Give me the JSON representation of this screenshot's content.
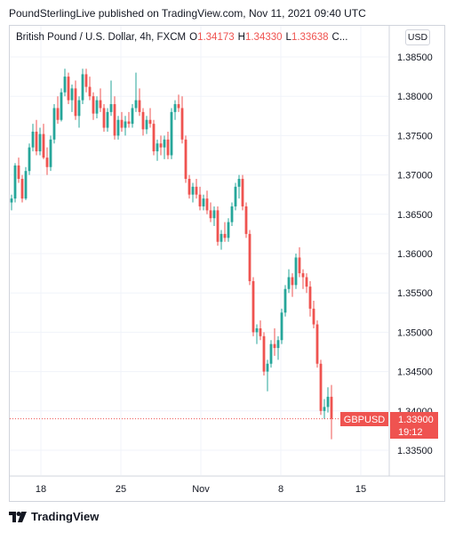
{
  "header": {
    "publisher_line": "PoundSterlingLive published on TradingView.com, Nov 11, 2021 09:40 UTC"
  },
  "legend": {
    "symbol": "British Pound / U.S. Dollar, 4h, FXCM",
    "o_key": "O",
    "o_val": "1.34173",
    "h_key": "H",
    "h_val": "1.34330",
    "l_key": "L",
    "l_val": "1.33638",
    "c_key": "C..."
  },
  "currency_button": "USD",
  "price_tag": {
    "symbol": "GBPUSD",
    "price": "1.33900",
    "countdown": "19:12"
  },
  "footer": {
    "brand": "TradingView"
  },
  "colors": {
    "up": "#26a69a",
    "down": "#ef5350",
    "grid": "#f0f3fa",
    "axis_text": "#131722"
  },
  "chart_data": {
    "type": "candlestick",
    "y_tick_labels": [
      "1.38500",
      "1.38000",
      "1.37500",
      "1.37000",
      "1.36500",
      "1.36000",
      "1.35500",
      "1.35000",
      "1.34500",
      "1.34000",
      "1.33500"
    ],
    "y_ticks": [
      1.385,
      1.38,
      1.375,
      1.37,
      1.365,
      1.36,
      1.355,
      1.35,
      1.345,
      1.34,
      1.335
    ],
    "x_tick_labels": [
      "18",
      "25",
      "Nov",
      "8",
      "15"
    ],
    "ylim": [
      1.3325,
      1.388
    ],
    "last_price": 1.339,
    "candles": [
      [
        1.3665,
        1.3675,
        1.3655,
        1.367
      ],
      [
        1.367,
        1.3715,
        1.3665,
        1.3712
      ],
      [
        1.3712,
        1.3722,
        1.369,
        1.3695
      ],
      [
        1.3695,
        1.37,
        1.3665,
        1.367
      ],
      [
        1.367,
        1.371,
        1.3668,
        1.3705
      ],
      [
        1.3705,
        1.374,
        1.37,
        1.3735
      ],
      [
        1.3735,
        1.3765,
        1.373,
        1.3755
      ],
      [
        1.3755,
        1.377,
        1.3725,
        1.373
      ],
      [
        1.373,
        1.376,
        1.3725,
        1.3752
      ],
      [
        1.3752,
        1.3765,
        1.372,
        1.3722
      ],
      [
        1.3722,
        1.3735,
        1.37,
        1.371
      ],
      [
        1.371,
        1.375,
        1.3705,
        1.3745
      ],
      [
        1.3745,
        1.379,
        1.374,
        1.3785
      ],
      [
        1.3785,
        1.38,
        1.3765,
        1.377
      ],
      [
        1.377,
        1.381,
        1.3768,
        1.3805
      ],
      [
        1.3805,
        1.3835,
        1.38,
        1.3825
      ],
      [
        1.3825,
        1.383,
        1.379,
        1.3795
      ],
      [
        1.3795,
        1.3815,
        1.378,
        1.381
      ],
      [
        1.381,
        1.382,
        1.377,
        1.3775
      ],
      [
        1.3775,
        1.38,
        1.376,
        1.3795
      ],
      [
        1.3795,
        1.3835,
        1.379,
        1.3828
      ],
      [
        1.3828,
        1.3835,
        1.3805,
        1.3812
      ],
      [
        1.3812,
        1.3825,
        1.3795,
        1.38
      ],
      [
        1.38,
        1.3805,
        1.377,
        1.3778
      ],
      [
        1.3778,
        1.38,
        1.3772,
        1.3795
      ],
      [
        1.3795,
        1.381,
        1.378,
        1.3785
      ],
      [
        1.3785,
        1.379,
        1.3755,
        1.376
      ],
      [
        1.376,
        1.3785,
        1.3755,
        1.378
      ],
      [
        1.378,
        1.382,
        1.3775,
        1.379
      ],
      [
        1.379,
        1.38,
        1.3745,
        1.375
      ],
      [
        1.375,
        1.3775,
        1.3745,
        1.377
      ],
      [
        1.377,
        1.378,
        1.3755,
        1.376
      ],
      [
        1.376,
        1.3775,
        1.375,
        1.3768
      ],
      [
        1.3768,
        1.378,
        1.376,
        1.3765
      ],
      [
        1.3765,
        1.379,
        1.376,
        1.3785
      ],
      [
        1.3785,
        1.383,
        1.378,
        1.3795
      ],
      [
        1.3795,
        1.381,
        1.3775,
        1.378
      ],
      [
        1.378,
        1.3785,
        1.375,
        1.3758
      ],
      [
        1.3758,
        1.3775,
        1.3752,
        1.377
      ],
      [
        1.377,
        1.3785,
        1.376,
        1.3765
      ],
      [
        1.3765,
        1.377,
        1.3725,
        1.373
      ],
      [
        1.373,
        1.3745,
        1.3718,
        1.374
      ],
      [
        1.374,
        1.375,
        1.3725,
        1.3735
      ],
      [
        1.3735,
        1.375,
        1.372,
        1.3745
      ],
      [
        1.3745,
        1.3755,
        1.372,
        1.3725
      ],
      [
        1.3725,
        1.3785,
        1.372,
        1.378
      ],
      [
        1.378,
        1.3795,
        1.377,
        1.379
      ],
      [
        1.379,
        1.3802,
        1.378,
        1.3785
      ],
      [
        1.3785,
        1.38,
        1.374,
        1.3745
      ],
      [
        1.3745,
        1.375,
        1.369,
        1.3695
      ],
      [
        1.3695,
        1.37,
        1.367,
        1.3675
      ],
      [
        1.3675,
        1.369,
        1.3665,
        1.3685
      ],
      [
        1.3685,
        1.3695,
        1.367,
        1.3675
      ],
      [
        1.3675,
        1.3685,
        1.3655,
        1.366
      ],
      [
        1.366,
        1.3675,
        1.3655,
        1.367
      ],
      [
        1.367,
        1.368,
        1.365,
        1.3655
      ],
      [
        1.3655,
        1.3665,
        1.364,
        1.3645
      ],
      [
        1.3645,
        1.366,
        1.3635,
        1.3655
      ],
      [
        1.3655,
        1.366,
        1.361,
        1.3615
      ],
      [
        1.3615,
        1.363,
        1.3605,
        1.3625
      ],
      [
        1.3625,
        1.364,
        1.3615,
        1.362
      ],
      [
        1.362,
        1.3645,
        1.3615,
        1.364
      ],
      [
        1.364,
        1.3665,
        1.3635,
        1.366
      ],
      [
        1.366,
        1.369,
        1.3655,
        1.3685
      ],
      [
        1.3685,
        1.37,
        1.367,
        1.3695
      ],
      [
        1.3695,
        1.37,
        1.3655,
        1.366
      ],
      [
        1.366,
        1.3665,
        1.362,
        1.3625
      ],
      [
        1.3625,
        1.363,
        1.356,
        1.3565
      ],
      [
        1.3565,
        1.357,
        1.3495,
        1.35
      ],
      [
        1.35,
        1.351,
        1.3485,
        1.3505
      ],
      [
        1.3505,
        1.3515,
        1.349,
        1.3495
      ],
      [
        1.3495,
        1.35,
        1.3445,
        1.345
      ],
      [
        1.345,
        1.3465,
        1.3425,
        1.346
      ],
      [
        1.346,
        1.349,
        1.3455,
        1.3485
      ],
      [
        1.3485,
        1.3505,
        1.347,
        1.348
      ],
      [
        1.348,
        1.3495,
        1.3465,
        1.349
      ],
      [
        1.349,
        1.353,
        1.3485,
        1.3525
      ],
      [
        1.3525,
        1.356,
        1.352,
        1.3555
      ],
      [
        1.3555,
        1.358,
        1.355,
        1.357
      ],
      [
        1.357,
        1.3575,
        1.3545,
        1.356
      ],
      [
        1.356,
        1.36,
        1.3555,
        1.3595
      ],
      [
        1.3595,
        1.3608,
        1.357,
        1.3575
      ],
      [
        1.3575,
        1.358,
        1.3555,
        1.357
      ],
      [
        1.357,
        1.3575,
        1.355,
        1.3558
      ],
      [
        1.3558,
        1.3565,
        1.352,
        1.353
      ],
      [
        1.353,
        1.354,
        1.3505,
        1.351
      ],
      [
        1.351,
        1.3515,
        1.3455,
        1.346
      ],
      [
        1.346,
        1.3465,
        1.3395,
        1.34
      ],
      [
        1.34,
        1.3415,
        1.339,
        1.3405
      ],
      [
        1.3405,
        1.343,
        1.3398,
        1.3418
      ],
      [
        1.3418,
        1.3433,
        1.3364,
        1.339
      ]
    ]
  }
}
